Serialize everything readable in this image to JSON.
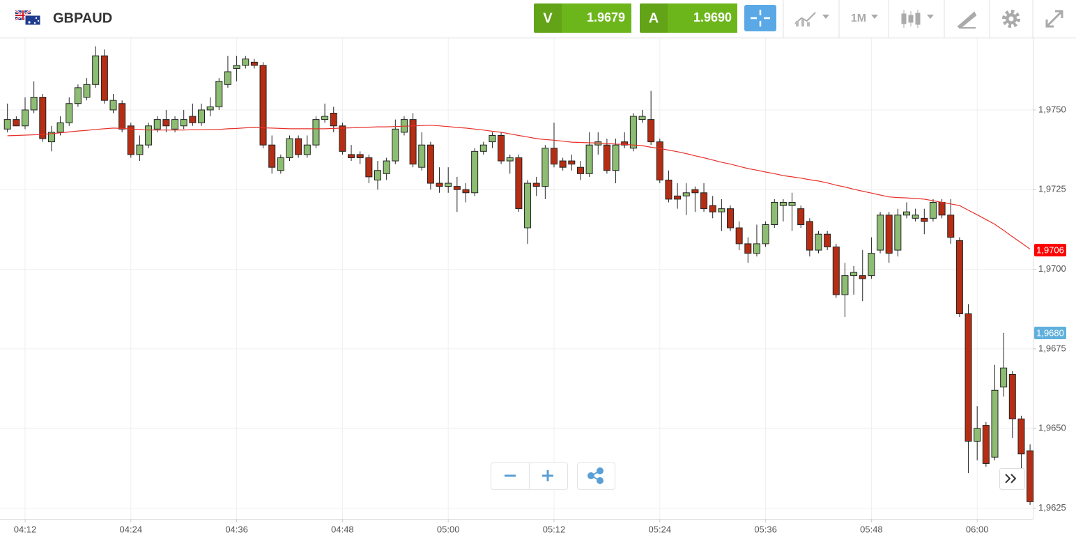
{
  "header": {
    "symbol": "GBPAUD",
    "sell_label": "V",
    "sell_price": "1.9679",
    "buy_label": "A",
    "buy_price": "1.9690",
    "timeframe": "1M"
  },
  "chart_data": {
    "type": "candlestick",
    "categories": [
      null,
      null,
      "04:12",
      null,
      null,
      null,
      null,
      null,
      null,
      null,
      null,
      null,
      null,
      null,
      "04:24",
      null,
      null,
      null,
      null,
      null,
      null,
      null,
      null,
      null,
      null,
      null,
      "04:36",
      null,
      null,
      null,
      null,
      null,
      null,
      null,
      null,
      null,
      null,
      null,
      "04:48",
      null,
      null,
      null,
      null,
      null,
      null,
      null,
      null,
      null,
      null,
      null,
      "05:00",
      null,
      null,
      null,
      null,
      null,
      null,
      null,
      null,
      null,
      null,
      null,
      "05:12",
      null,
      null,
      null,
      null,
      null,
      null,
      null,
      null,
      null,
      null,
      null,
      "05:24",
      null,
      null,
      null,
      null,
      null,
      null,
      null,
      null,
      null,
      null,
      null,
      "05:36",
      null,
      null,
      null,
      null,
      null,
      null,
      null,
      null,
      null,
      null,
      null,
      "05:48",
      null,
      null,
      null,
      null,
      null,
      null,
      null,
      null,
      null,
      null,
      null,
      "06:00",
      null,
      null,
      null,
      null,
      null,
      null
    ],
    "ohlc": [
      [
        1.9744,
        1.9752,
        1.9743,
        1.9747
      ],
      [
        1.9747,
        1.9748,
        1.9745,
        1.9745
      ],
      [
        1.9745,
        1.9754,
        1.9744,
        1.975
      ],
      [
        1.975,
        1.9759,
        1.9749,
        1.9754
      ],
      [
        1.9754,
        1.9755,
        1.974,
        1.9741
      ],
      [
        1.974,
        1.9745,
        1.9737,
        1.9743
      ],
      [
        1.9743,
        1.9748,
        1.9742,
        1.9746
      ],
      [
        1.9746,
        1.9754,
        1.9745,
        1.9752
      ],
      [
        1.9752,
        1.9758,
        1.9751,
        1.9757
      ],
      [
        1.9754,
        1.976,
        1.9753,
        1.9758
      ],
      [
        1.9758,
        1.977,
        1.9757,
        1.9767
      ],
      [
        1.9767,
        1.9769,
        1.9752,
        1.9753
      ],
      [
        1.975,
        1.9755,
        1.9749,
        1.9753
      ],
      [
        1.9752,
        1.9753,
        1.9743,
        1.9744
      ],
      [
        1.9745,
        1.9746,
        1.9735,
        1.9736
      ],
      [
        1.9736,
        1.9742,
        1.9734,
        1.9739
      ],
      [
        1.9739,
        1.9746,
        1.9738,
        1.9745
      ],
      [
        1.9744,
        1.9748,
        1.9743,
        1.9747
      ],
      [
        1.9747,
        1.975,
        1.9743,
        1.9745
      ],
      [
        1.9744,
        1.9748,
        1.9743,
        1.9747
      ],
      [
        1.9745,
        1.975,
        1.9744,
        1.9747
      ],
      [
        1.9748,
        1.9752,
        1.9745,
        1.9746
      ],
      [
        1.9746,
        1.9752,
        1.9745,
        1.975
      ],
      [
        1.975,
        1.9754,
        1.9748,
        1.9751
      ],
      [
        1.9751,
        1.976,
        1.975,
        1.9759
      ],
      [
        1.9758,
        1.9767,
        1.9757,
        1.9762
      ],
      [
        1.9763,
        1.9767,
        1.9759,
        1.9764
      ],
      [
        1.9764,
        1.9767,
        1.9763,
        1.9766
      ],
      [
        1.9765,
        1.9766,
        1.9763,
        1.9764
      ],
      [
        1.9764,
        1.9765,
        1.9738,
        1.9739
      ],
      [
        1.9739,
        1.9742,
        1.973,
        1.9732
      ],
      [
        1.9731,
        1.9736,
        1.973,
        1.9735
      ],
      [
        1.9735,
        1.9742,
        1.9734,
        1.9741
      ],
      [
        1.9741,
        1.9742,
        1.9735,
        1.9736
      ],
      [
        1.9736,
        1.9742,
        1.9735,
        1.9739
      ],
      [
        1.9739,
        1.9748,
        1.9738,
        1.9747
      ],
      [
        1.9747,
        1.9752,
        1.9746,
        1.9748
      ],
      [
        1.9749,
        1.9751,
        1.9743,
        1.9745
      ],
      [
        1.9745,
        1.9746,
        1.9736,
        1.9737
      ],
      [
        1.9736,
        1.9739,
        1.9734,
        1.9735
      ],
      [
        1.9736,
        1.9737,
        1.9733,
        1.9735
      ],
      [
        1.9735,
        1.9736,
        1.9727,
        1.9729
      ],
      [
        1.9728,
        1.9734,
        1.9725,
        1.9731
      ],
      [
        1.973,
        1.9735,
        1.9728,
        1.9734
      ],
      [
        1.9734,
        1.9747,
        1.9733,
        1.9744
      ],
      [
        1.9743,
        1.9748,
        1.9742,
        1.9747
      ],
      [
        1.9747,
        1.9749,
        1.9732,
        1.9733
      ],
      [
        1.9732,
        1.9743,
        1.9731,
        1.9739
      ],
      [
        1.9739,
        1.974,
        1.9725,
        1.9727
      ],
      [
        1.9727,
        1.9732,
        1.9724,
        1.9726
      ],
      [
        1.9726,
        1.9732,
        1.9724,
        1.9727
      ],
      [
        1.9726,
        1.9729,
        1.9718,
        1.9725
      ],
      [
        1.9725,
        1.9727,
        1.9721,
        1.9724
      ],
      [
        1.9724,
        1.9738,
        1.9723,
        1.9737
      ],
      [
        1.9737,
        1.974,
        1.9736,
        1.9739
      ],
      [
        1.974,
        1.9743,
        1.9738,
        1.9742
      ],
      [
        1.9742,
        1.9743,
        1.9733,
        1.9734
      ],
      [
        1.9734,
        1.9736,
        1.973,
        1.9735
      ],
      [
        1.9735,
        1.9736,
        1.9718,
        1.9719
      ],
      [
        1.9713,
        1.9728,
        1.9708,
        1.9727
      ],
      [
        1.9727,
        1.9729,
        1.9723,
        1.9726
      ],
      [
        1.9726,
        1.9739,
        1.9722,
        1.9738
      ],
      [
        1.9738,
        1.9746,
        1.9732,
        1.9733
      ],
      [
        1.9734,
        1.9735,
        1.9731,
        1.9732
      ],
      [
        1.9734,
        1.9736,
        1.9731,
        1.9733
      ],
      [
        1.9732,
        1.9734,
        1.9728,
        1.973
      ],
      [
        1.973,
        1.9743,
        1.9729,
        1.9739
      ],
      [
        1.9739,
        1.9743,
        1.9736,
        1.974
      ],
      [
        1.9739,
        1.9741,
        1.973,
        1.9731
      ],
      [
        1.9731,
        1.9741,
        1.9727,
        1.9739
      ],
      [
        1.974,
        1.9743,
        1.9738,
        1.9739
      ],
      [
        1.9738,
        1.9749,
        1.9737,
        1.9748
      ],
      [
        1.9747,
        1.975,
        1.9746,
        1.9748
      ],
      [
        1.9747,
        1.9756,
        1.9739,
        1.974
      ],
      [
        1.974,
        1.9741,
        1.9727,
        1.9728
      ],
      [
        1.9728,
        1.9731,
        1.9721,
        1.9722
      ],
      [
        1.9723,
        1.9727,
        1.9719,
        1.9722
      ],
      [
        1.9723,
        1.9727,
        1.9717,
        1.9724
      ],
      [
        1.9725,
        1.9726,
        1.9718,
        1.9724
      ],
      [
        1.9724,
        1.9727,
        1.9718,
        1.9719
      ],
      [
        1.972,
        1.9723,
        1.9716,
        1.9718
      ],
      [
        1.9718,
        1.9722,
        1.9712,
        1.9719
      ],
      [
        1.9719,
        1.972,
        1.9712,
        1.9713
      ],
      [
        1.9713,
        1.9715,
        1.9706,
        1.9708
      ],
      [
        1.9708,
        1.971,
        1.9702,
        1.9705
      ],
      [
        1.9705,
        1.9714,
        1.9704,
        1.9708
      ],
      [
        1.9708,
        1.9715,
        1.9707,
        1.9714
      ],
      [
        1.9714,
        1.9722,
        1.9713,
        1.9721
      ],
      [
        1.972,
        1.9722,
        1.9715,
        1.9721
      ],
      [
        1.972,
        1.9724,
        1.9712,
        1.9721
      ],
      [
        1.9719,
        1.972,
        1.9713,
        1.9714
      ],
      [
        1.9715,
        1.9716,
        1.9704,
        1.9706
      ],
      [
        1.9706,
        1.9712,
        1.9705,
        1.9711
      ],
      [
        1.9711,
        1.9712,
        1.9706,
        1.9707
      ],
      [
        1.9707,
        1.9708,
        1.9691,
        1.9692
      ],
      [
        1.9692,
        1.9702,
        1.9685,
        1.9698
      ],
      [
        1.9698,
        1.9701,
        1.9692,
        1.9699
      ],
      [
        1.9698,
        1.9706,
        1.969,
        1.9697
      ],
      [
        1.9698,
        1.971,
        1.9697,
        1.9705
      ],
      [
        1.9706,
        1.9718,
        1.9705,
        1.9717
      ],
      [
        1.9717,
        1.9718,
        1.9702,
        1.9705
      ],
      [
        1.9706,
        1.9719,
        1.9704,
        1.9717
      ],
      [
        1.9717,
        1.9721,
        1.9716,
        1.9718
      ],
      [
        1.9716,
        1.9719,
        1.9715,
        1.9717
      ],
      [
        1.9716,
        1.9719,
        1.9711,
        1.9715
      ],
      [
        1.9716,
        1.9722,
        1.9715,
        1.9721
      ],
      [
        1.9721,
        1.9722,
        1.9716,
        1.9717
      ],
      [
        1.9717,
        1.9722,
        1.9708,
        1.971
      ],
      [
        1.9709,
        1.971,
        1.9685,
        1.9686
      ],
      [
        1.9686,
        1.9689,
        1.9636,
        1.9646
      ],
      [
        1.9646,
        1.9657,
        1.964,
        1.965
      ],
      [
        1.9651,
        1.9652,
        1.9638,
        1.9639
      ],
      [
        1.9641,
        1.967,
        1.964,
        1.9662
      ],
      [
        1.9663,
        1.968,
        1.966,
        1.9669
      ],
      [
        1.9667,
        1.9668,
        1.9647,
        1.9653
      ],
      [
        1.9653,
        1.9654,
        1.9637,
        1.9642
      ],
      [
        1.9643,
        1.9645,
        1.9626,
        1.9627
      ]
    ],
    "up_color": "#8dbd72",
    "down_color": "#b52e14",
    "moving_average": {
      "color": "#e8302a",
      "values": [
        1.97419,
        1.9742,
        1.97421,
        1.97422,
        1.97423,
        1.97426,
        1.97428,
        1.97431,
        1.97434,
        1.97436,
        1.97439,
        1.97441,
        1.97443,
        1.97442,
        1.9744,
        1.97439,
        1.97437,
        1.97437,
        1.97437,
        1.97437,
        1.97437,
        1.97438,
        1.97438,
        1.97439,
        1.97439,
        1.97441,
        1.97442,
        1.97444,
        1.97445,
        1.97444,
        1.97443,
        1.97442,
        1.97441,
        1.97441,
        1.97441,
        1.97441,
        1.97441,
        1.97442,
        1.97443,
        1.97444,
        1.97445,
        1.97446,
        1.97447,
        1.97447,
        1.97448,
        1.97449,
        1.9745,
        1.97451,
        1.97452,
        1.9745,
        1.97448,
        1.97445,
        1.97443,
        1.9744,
        1.97437,
        1.97433,
        1.9743,
        1.97425,
        1.9742,
        1.97415,
        1.9741,
        1.97407,
        1.97405,
        1.97402,
        1.97399,
        1.97398,
        1.97397,
        1.97396,
        1.97395,
        1.97393,
        1.97392,
        1.9739,
        1.97388,
        1.97383,
        1.97379,
        1.97374,
        1.97369,
        1.97363,
        1.97356,
        1.9735,
        1.97343,
        1.97336,
        1.9733,
        1.97323,
        1.97316,
        1.97311,
        1.97305,
        1.973,
        1.97294,
        1.9729,
        1.97286,
        1.97281,
        1.97277,
        1.97271,
        1.97264,
        1.97258,
        1.97251,
        1.97245,
        1.97239,
        1.97233,
        1.97227,
        1.97225,
        1.97224,
        1.97222,
        1.9722,
        1.97215,
        1.9721,
        1.97205,
        1.972,
        1.97185,
        1.97171,
        1.97156,
        1.97141,
        1.97122,
        1.97102,
        1.97083,
        1.97063
      ]
    },
    "ylim": [
      1.96216,
      1.97725
    ],
    "yticks": [
      {
        "value": 1.9625,
        "label": "1,9625"
      },
      {
        "value": 1.965,
        "label": "1,9650"
      },
      {
        "value": 1.9675,
        "label": "1,9675"
      },
      {
        "value": 1.97,
        "label": "1,9700"
      },
      {
        "value": 1.9725,
        "label": "1,9725"
      },
      {
        "value": 1.975,
        "label": "1,9750"
      }
    ],
    "price_markers": [
      {
        "value": 1.9706,
        "label": "1,9706",
        "color": "#ff0000"
      },
      {
        "value": 1.968,
        "label": "1,9680",
        "color": "#5fb0dd"
      }
    ],
    "grid": true
  }
}
